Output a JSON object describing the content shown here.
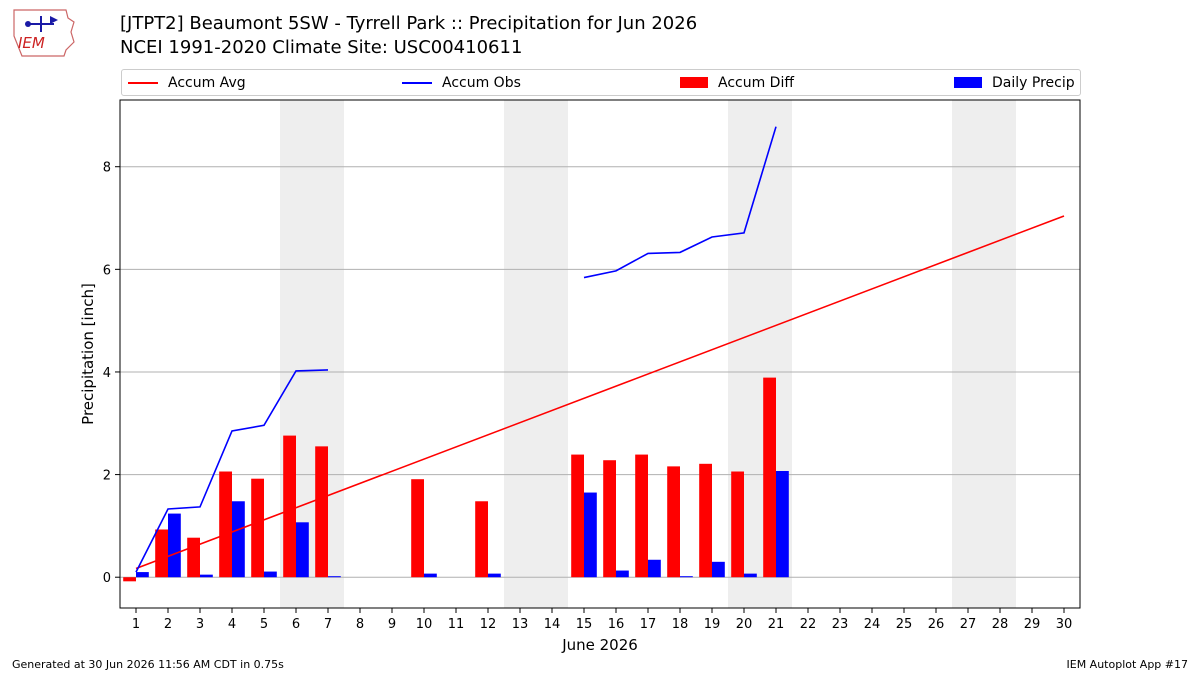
{
  "header": {
    "title_line1": "[JTPT2] Beaumont 5SW - Tyrrell Park :: Precipitation for Jun 2026",
    "title_line2": "NCEI 1991-2020 Climate Site: USC00410611",
    "logo_text": "IEM"
  },
  "footer": {
    "generated": "Generated at 30 Jun 2026 11:56 AM CDT in 0.75s",
    "app": "IEM Autoplot App #17"
  },
  "colors": {
    "avg": "#ff0000",
    "obs": "#0000ff",
    "diff": "#ff0000",
    "daily": "#0000ff",
    "weekend": "#eeeeee",
    "grid": "#b0b0b0"
  },
  "chart_data": {
    "type": "bar",
    "xlabel": "June 2026",
    "ylabel": "Precipitation [inch]",
    "xlim": [
      0.5,
      30.5
    ],
    "ylim": [
      -0.6,
      9.3
    ],
    "y_ticks": [
      0,
      2,
      4,
      6,
      8
    ],
    "x_ticks": [
      1,
      2,
      3,
      4,
      5,
      6,
      7,
      8,
      9,
      10,
      11,
      12,
      13,
      14,
      15,
      16,
      17,
      18,
      19,
      20,
      21,
      22,
      23,
      24,
      25,
      26,
      27,
      28,
      29,
      30
    ],
    "grid": "horizontal",
    "legend": "top",
    "weekend_spans": [
      [
        6,
        7
      ],
      [
        13,
        14
      ],
      [
        20,
        21
      ],
      [
        27,
        28
      ]
    ],
    "series": [
      {
        "name": "Accum Avg",
        "kind": "line",
        "x": [
          1,
          30
        ],
        "y": [
          0.17,
          7.04
        ]
      },
      {
        "name": "Accum Obs",
        "kind": "line",
        "segments": [
          {
            "x": [
              1,
              2,
              3,
              4,
              5,
              6,
              7
            ],
            "y": [
              0.1,
              1.33,
              1.37,
              2.85,
              2.96,
              4.02,
              4.04
            ]
          },
          {
            "x": [
              15,
              16,
              17,
              18,
              19,
              20,
              21
            ],
            "y": [
              5.84,
              5.97,
              6.31,
              6.33,
              6.63,
              6.71,
              8.78
            ]
          }
        ]
      },
      {
        "name": "Accum Diff",
        "kind": "bar",
        "x": [
          1,
          2,
          3,
          4,
          5,
          6,
          7,
          10,
          12,
          15,
          16,
          17,
          18,
          19,
          20,
          21
        ],
        "values": [
          -0.08,
          0.93,
          0.77,
          2.06,
          1.92,
          2.76,
          2.55,
          1.91,
          1.48,
          2.39,
          2.28,
          2.39,
          2.16,
          2.21,
          2.06,
          3.89
        ]
      },
      {
        "name": "Daily Precip",
        "kind": "bar",
        "x": [
          1,
          2,
          3,
          4,
          5,
          6,
          7,
          10,
          12,
          15,
          16,
          17,
          18,
          19,
          20,
          21
        ],
        "values": [
          0.1,
          1.24,
          0.05,
          1.48,
          0.11,
          1.07,
          0.02,
          0.07,
          0.07,
          1.65,
          0.13,
          0.34,
          0.02,
          0.3,
          0.07,
          2.07
        ]
      }
    ]
  }
}
